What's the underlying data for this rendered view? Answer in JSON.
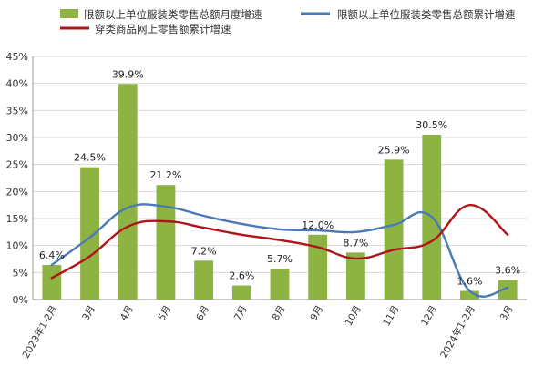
{
  "chart_data": {
    "type": "bar",
    "categories": [
      "2023年1-2月",
      "3月",
      "4月",
      "5月",
      "6月",
      "7月",
      "8月",
      "9月",
      "10月",
      "11月",
      "12月",
      "2024年1-2月",
      "3月"
    ],
    "ylim": [
      0,
      45
    ],
    "yticks": [
      "0%",
      "5%",
      "10%",
      "15%",
      "20%",
      "25%",
      "30%",
      "35%",
      "40%",
      "45%"
    ],
    "grid": true,
    "legend_position": "top",
    "series": [
      {
        "name": "限额以上单位服装类零售总额月度增速",
        "kind": "bar",
        "color": "#8db443",
        "values": [
          6.4,
          24.5,
          39.9,
          21.2,
          7.2,
          2.6,
          5.7,
          12.0,
          8.7,
          25.9,
          30.5,
          1.6,
          3.6
        ],
        "labels": [
          "6.4%",
          "24.5%",
          "39.9%",
          "21.2%",
          "7.2%",
          "2.6%",
          "5.7%",
          "12.0%",
          "8.7%",
          "25.9%",
          "30.5%",
          "1.6%",
          "3.6%"
        ]
      },
      {
        "name": "限额以上单位服装类零售总额累计增速",
        "kind": "line",
        "color": "#4a7ab5",
        "values": [
          6.4,
          11.5,
          17.0,
          17.2,
          15.5,
          14.0,
          13.0,
          12.8,
          12.5,
          13.8,
          15.3,
          1.6,
          2.2
        ]
      },
      {
        "name": "穿类商品网上零售额累计增速",
        "kind": "line",
        "color": "#b0141a",
        "values": [
          4.0,
          8.0,
          13.5,
          14.5,
          13.3,
          12.0,
          11.0,
          9.7,
          7.6,
          9.2,
          10.8,
          17.5,
          12.0
        ]
      }
    ]
  }
}
